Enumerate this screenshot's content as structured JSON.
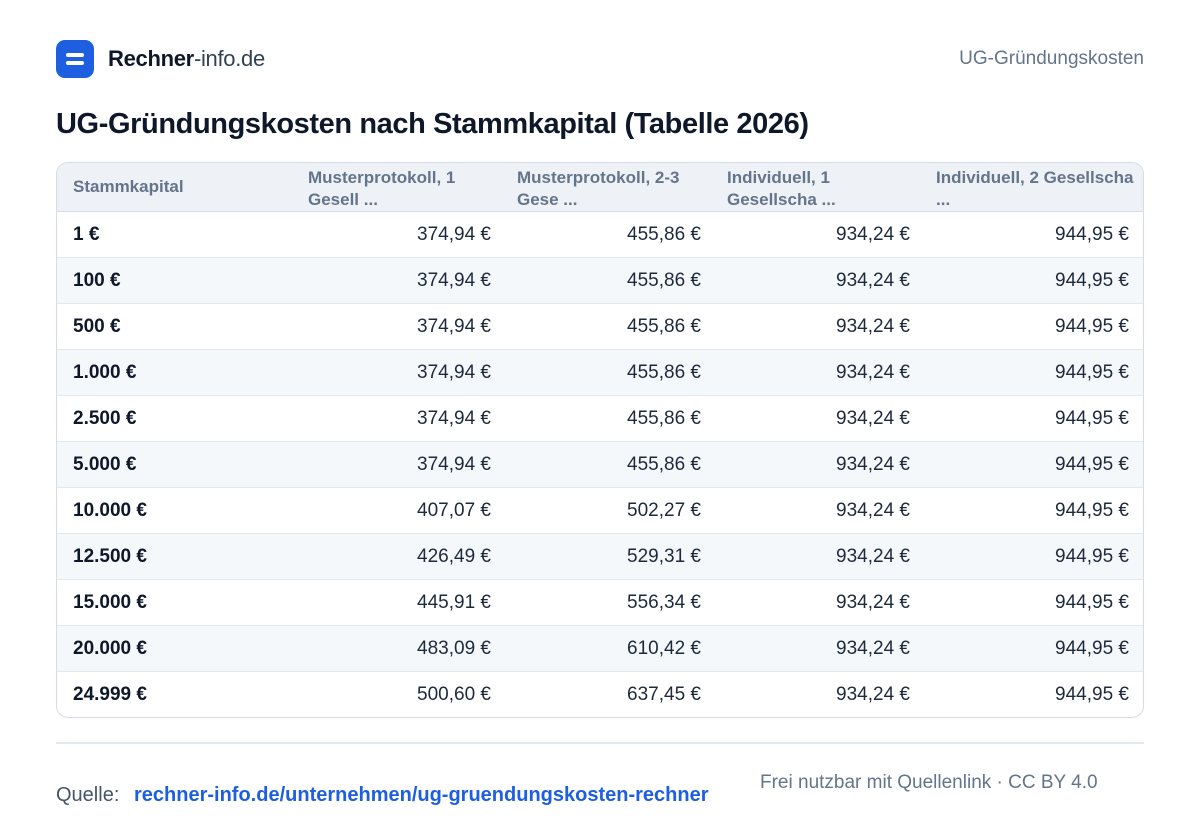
{
  "header": {
    "brand_strong": "Rechner",
    "brand_light": "-info.de",
    "page_label": "UG-Gründungskosten"
  },
  "title": "UG-Gründungskosten nach Stammkapital (Tabelle 2026)",
  "table": {
    "columns": [
      "Stammkapital",
      "Musterprotokoll, 1 Gesell ...",
      "Musterprotokoll, 2-3 Gese ...",
      "Individuell, 1 Gesellscha ...",
      "Individuell, 2 Gesellscha ..."
    ],
    "rows": [
      [
        "1 €",
        "374,94 €",
        "455,86 €",
        "934,24 €",
        "944,95 €"
      ],
      [
        "100 €",
        "374,94 €",
        "455,86 €",
        "934,24 €",
        "944,95 €"
      ],
      [
        "500 €",
        "374,94 €",
        "455,86 €",
        "934,24 €",
        "944,95 €"
      ],
      [
        "1.000 €",
        "374,94 €",
        "455,86 €",
        "934,24 €",
        "944,95 €"
      ],
      [
        "2.500 €",
        "374,94 €",
        "455,86 €",
        "934,24 €",
        "944,95 €"
      ],
      [
        "5.000 €",
        "374,94 €",
        "455,86 €",
        "934,24 €",
        "944,95 €"
      ],
      [
        "10.000 €",
        "407,07 €",
        "502,27 €",
        "934,24 €",
        "944,95 €"
      ],
      [
        "12.500 €",
        "426,49 €",
        "529,31 €",
        "934,24 €",
        "944,95 €"
      ],
      [
        "15.000 €",
        "445,91 €",
        "556,34 €",
        "934,24 €",
        "944,95 €"
      ],
      [
        "20.000 €",
        "483,09 €",
        "610,42 €",
        "934,24 €",
        "944,95 €"
      ],
      [
        "24.999 €",
        "500,60 €",
        "637,45 €",
        "934,24 €",
        "944,95 €"
      ]
    ]
  },
  "footer": {
    "source_label": "Quelle:",
    "source_link": "rechner-info.de/unternehmen/ug-gruendungskosten-rechner",
    "license": "Frei nutzbar mit Quellenlink · CC BY 4.0"
  },
  "colors": {
    "brand": "#1d5fe0",
    "header_bg": "#eef2f7",
    "stripe_bg": "#f5f8fb"
  }
}
